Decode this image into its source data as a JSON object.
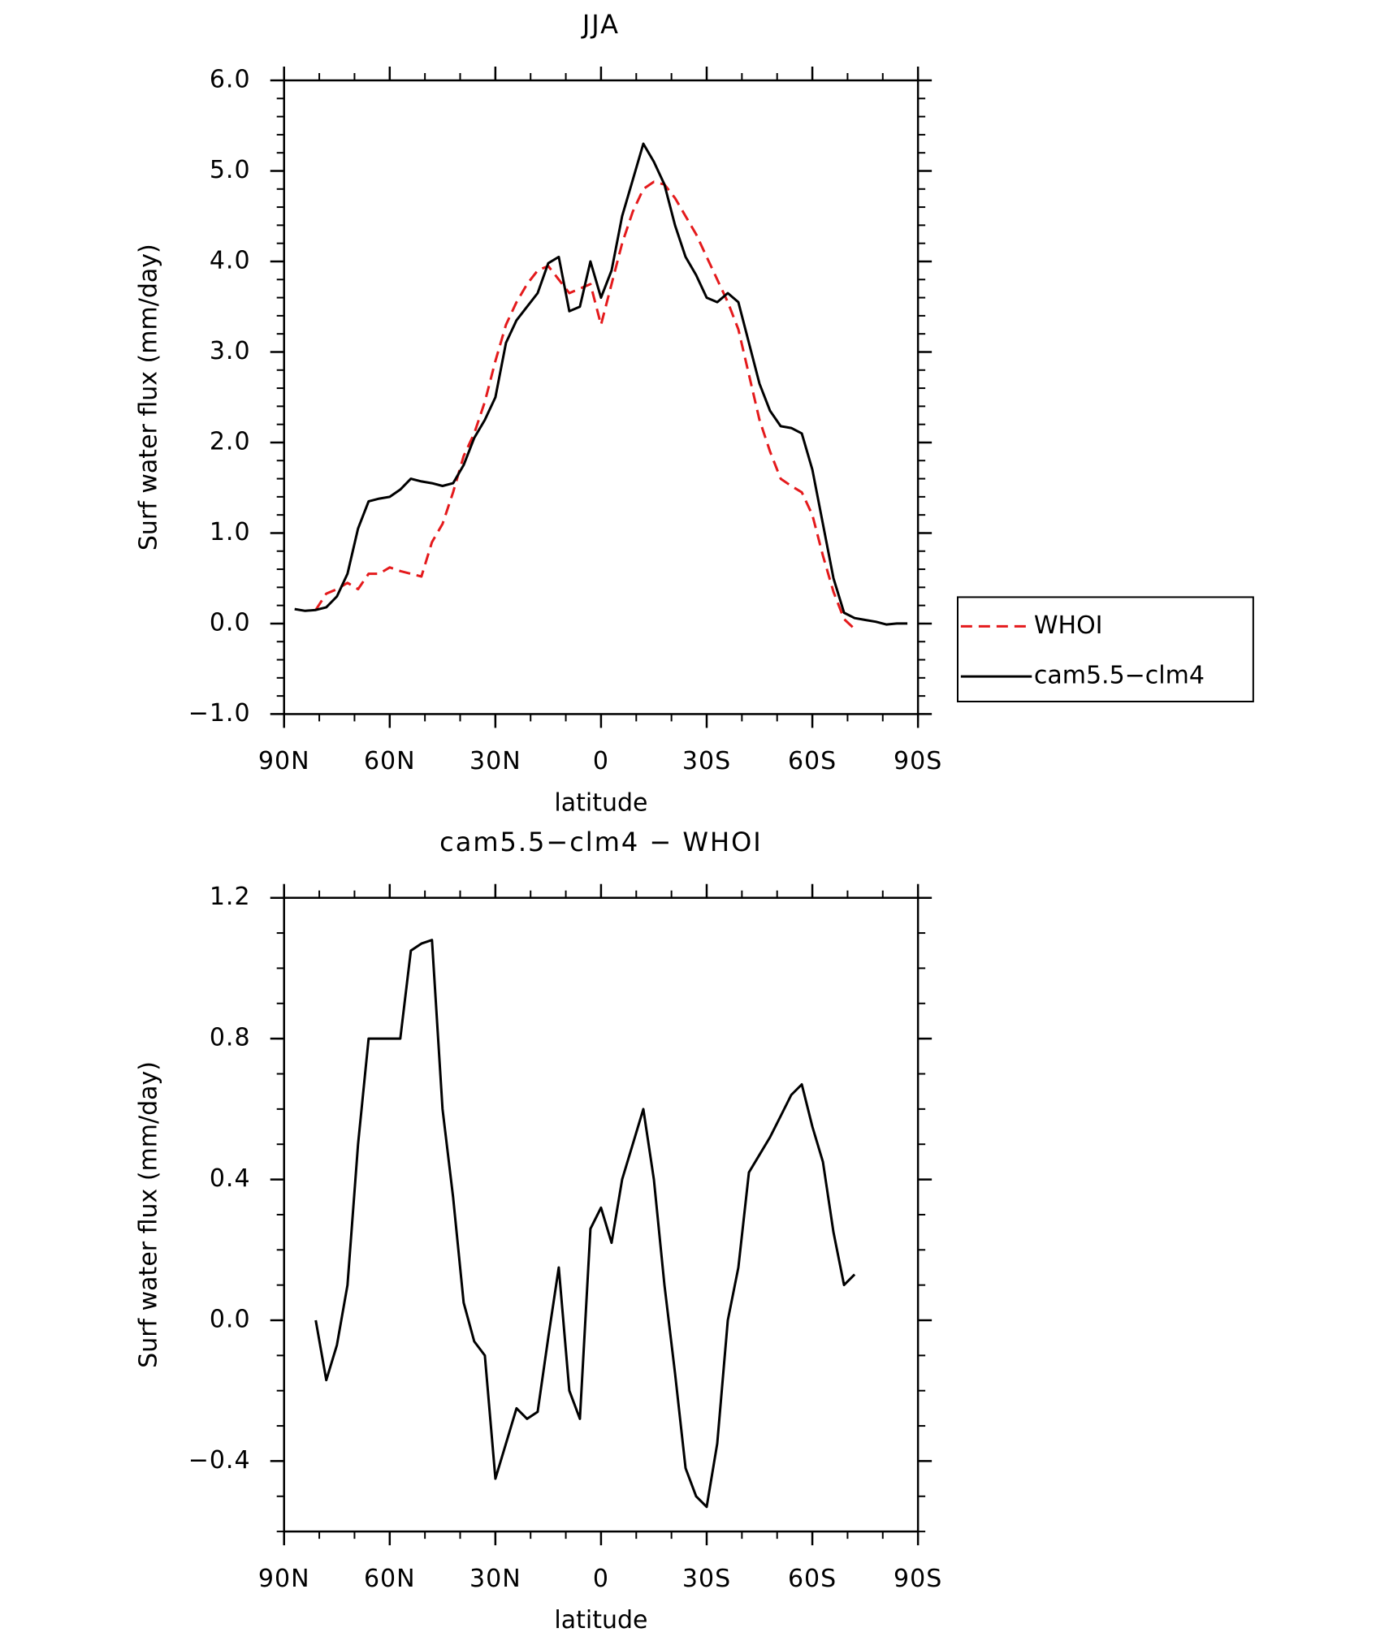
{
  "chart_data": [
    {
      "type": "line",
      "title": "JJA",
      "xlabel": "latitude",
      "ylabel": "Surf water flux (mm/day)",
      "x": [
        87,
        84,
        81,
        78,
        75,
        72,
        69,
        66,
        63,
        60,
        57,
        54,
        51,
        48,
        45,
        42,
        39,
        36,
        33,
        30,
        27,
        24,
        21,
        18,
        15,
        12,
        9,
        6,
        3,
        0,
        -3,
        -6,
        -9,
        -12,
        -15,
        -18,
        -21,
        -24,
        -27,
        -30,
        -33,
        -36,
        -39,
        -42,
        -45,
        -48,
        -51,
        -54,
        -57,
        -60,
        -63,
        -66,
        -69,
        -72,
        -75,
        -78,
        -81,
        -84,
        -87
      ],
      "series": [
        {
          "name": "WHOI",
          "color": "#e41a1c",
          "dash": true,
          "values": [
            null,
            null,
            0.15,
            0.33,
            0.38,
            0.45,
            0.38,
            0.55,
            0.55,
            0.62,
            0.58,
            0.55,
            0.52,
            0.9,
            1.1,
            1.45,
            1.85,
            2.1,
            2.45,
            2.9,
            3.3,
            3.55,
            3.75,
            3.9,
            3.95,
            3.8,
            3.65,
            3.7,
            3.75,
            3.3,
            3.75,
            4.2,
            4.55,
            4.8,
            4.88,
            4.85,
            4.7,
            4.5,
            4.3,
            4.05,
            3.8,
            3.55,
            3.25,
            2.75,
            2.25,
            1.9,
            1.6,
            1.52,
            1.45,
            1.2,
            0.75,
            0.35,
            0.05,
            -0.06,
            null,
            null,
            null,
            null,
            null
          ]
        },
        {
          "name": "cam5.5−clm4",
          "color": "#000000",
          "dash": false,
          "values": [
            0.16,
            0.14,
            0.15,
            0.18,
            0.3,
            0.55,
            1.05,
            1.35,
            1.38,
            1.4,
            1.48,
            1.6,
            1.57,
            1.55,
            1.52,
            1.55,
            1.75,
            2.05,
            2.25,
            2.5,
            3.1,
            3.35,
            3.5,
            3.65,
            3.98,
            4.05,
            3.45,
            3.5,
            4.0,
            3.6,
            3.9,
            4.5,
            4.9,
            5.3,
            5.1,
            4.85,
            4.4,
            4.05,
            3.85,
            3.6,
            3.55,
            3.65,
            3.55,
            3.1,
            2.65,
            2.35,
            2.18,
            2.16,
            2.1,
            1.7,
            1.1,
            0.5,
            0.12,
            0.06,
            0.04,
            0.02,
            -0.01,
            0.0,
            0.0
          ]
        }
      ],
      "xlim": [
        90,
        -90
      ],
      "xticks": [
        {
          "value": 90,
          "label": "90N"
        },
        {
          "value": 60,
          "label": "60N"
        },
        {
          "value": 30,
          "label": "30N"
        },
        0,
        {
          "value": -30,
          "label": "30S"
        },
        {
          "value": -60,
          "label": "60S"
        },
        {
          "value": -90,
          "label": "90S"
        }
      ],
      "ylim": [
        -1,
        6
      ],
      "yticks": [
        {
          "value": 6,
          "label": "6.0"
        },
        {
          "value": 5,
          "label": "5.0"
        },
        {
          "value": 4,
          "label": "4.0"
        },
        {
          "value": 3,
          "label": "3.0"
        },
        {
          "value": 2,
          "label": "2.0"
        },
        {
          "value": 1,
          "label": "1.0"
        },
        {
          "value": 0,
          "label": "0.0"
        },
        {
          "value": -1,
          "label": "−1.0"
        }
      ],
      "legend": "right"
    },
    {
      "type": "line",
      "title": "cam5.5−clm4 − WHOI",
      "xlabel": "latitude",
      "ylabel": "Surf water flux (mm/day)",
      "x": [
        81,
        78,
        75,
        72,
        69,
        66,
        63,
        60,
        57,
        54,
        51,
        48,
        45,
        42,
        39,
        36,
        33,
        30,
        27,
        24,
        21,
        18,
        15,
        12,
        9,
        6,
        3,
        0,
        -3,
        -6,
        -9,
        -12,
        -15,
        -18,
        -21,
        -24,
        -27,
        -30,
        -33,
        -36,
        -39,
        -42,
        -45,
        -48,
        -51,
        -54,
        -57,
        -60,
        -63,
        -66,
        -69,
        -72
      ],
      "series": [
        {
          "color": "#000000",
          "values": [
            0.0,
            -0.17,
            -0.07,
            0.1,
            0.5,
            0.8,
            0.8,
            0.8,
            0.8,
            1.05,
            1.07,
            1.08,
            0.6,
            0.35,
            0.05,
            -0.06,
            -0.1,
            -0.45,
            -0.35,
            -0.25,
            -0.28,
            -0.26,
            -0.05,
            0.15,
            -0.2,
            -0.28,
            0.26,
            0.32,
            0.22,
            0.4,
            0.5,
            0.6,
            0.4,
            0.1,
            -0.15,
            -0.42,
            -0.5,
            -0.53,
            -0.35,
            0.0,
            0.15,
            0.42,
            0.47,
            0.52,
            0.58,
            0.64,
            0.67,
            0.55,
            0.45,
            0.25,
            0.1,
            0.13
          ]
        }
      ],
      "xlim": [
        90,
        -90
      ],
      "xticks": [
        {
          "value": 90,
          "label": "90N"
        },
        {
          "value": 60,
          "label": "60N"
        },
        {
          "value": 30,
          "label": "30N"
        },
        0,
        {
          "value": -30,
          "label": "30S"
        },
        {
          "value": -60,
          "label": "60S"
        },
        {
          "value": -90,
          "label": "90S"
        }
      ],
      "ylim": [
        -0.6,
        1.2
      ],
      "yticks": [
        1.2,
        0.8,
        0.4,
        {
          "value": 0,
          "label": "0.0"
        },
        {
          "value": -0.4,
          "label": "−0.4"
        }
      ]
    }
  ]
}
